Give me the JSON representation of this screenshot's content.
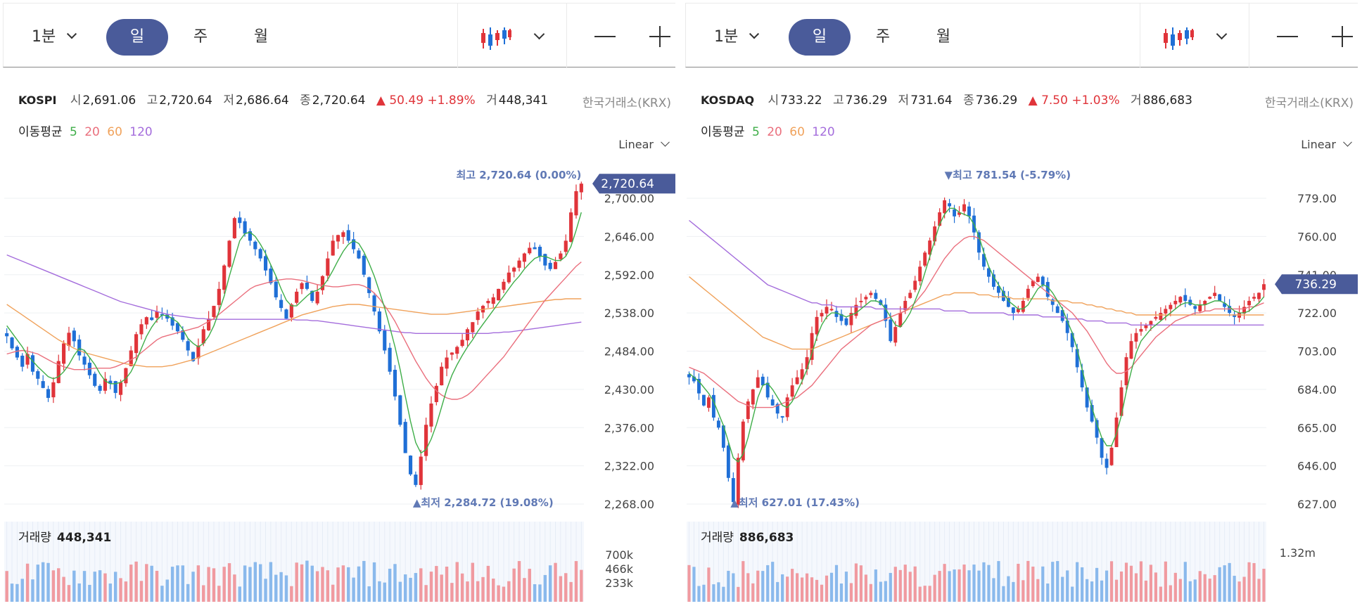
{
  "panels": [
    {
      "toolbar": {
        "interval": "1분",
        "day": "일",
        "week": "주",
        "month": "월"
      },
      "symbol": "KOSPI",
      "quote": {
        "open_label": "시",
        "open": "2,691.06",
        "high_label": "고",
        "high": "2,720.64",
        "low_label": "저",
        "low": "2,686.64",
        "close_label": "종",
        "close": "2,720.64",
        "change": "▲ 50.49 +1.89%",
        "volume_label": "거",
        "volume": "448,341"
      },
      "exchange": "한국거래소(KRX)",
      "ma": {
        "label": "이동평균",
        "p5": "5",
        "p20": "20",
        "p60": "60",
        "p120": "120"
      },
      "scale": "Linear",
      "price_badge": "2,720.64",
      "max_label": "최고 2,720.64 (0.00%)",
      "min_label": "▲최저 2,284.72 (19.08%)",
      "volume_title": "거래량",
      "volume_value": "448,341"
    },
    {
      "toolbar": {
        "interval": "1분",
        "day": "일",
        "week": "주",
        "month": "월"
      },
      "symbol": "KOSDAQ",
      "quote": {
        "open_label": "시",
        "open": "733.22",
        "high_label": "고",
        "high": "736.29",
        "low_label": "저",
        "low": "731.64",
        "close_label": "종",
        "close": "736.29",
        "change": "▲ 7.50 +1.03%",
        "volume_label": "거",
        "volume": "886,683"
      },
      "exchange": "한국거래소(KRX)",
      "ma": {
        "label": "이동평균",
        "p5": "5",
        "p20": "20",
        "p60": "60",
        "p120": "120"
      },
      "scale": "Linear",
      "price_badge": "736.29",
      "max_label": "▼최고 781.54 (-5.79%)",
      "min_label": "▲최저 627.01 (17.43%)",
      "volume_title": "거래량",
      "volume_value": "886,683"
    }
  ],
  "colors": {
    "up": "#e0343a",
    "down": "#1f6fd6",
    "ma5": "#3fae49",
    "ma20": "#ea6f7d",
    "ma60": "#f0a25b",
    "ma120": "#a46ddc",
    "badge": "#4a5b9a"
  },
  "chart_data": [
    {
      "type": "candlestick",
      "title": "KOSPI",
      "y_ticks": [
        "2,700.00",
        "2,646.00",
        "2,592.00",
        "2,538.00",
        "2,484.00",
        "2,430.00",
        "2,376.00",
        "2,322.00",
        "2,268.00"
      ],
      "ylim": [
        2268,
        2700
      ],
      "vol_ticks": [
        "700k",
        "466k",
        "233k"
      ],
      "vol_max": 700000,
      "close": [
        2505,
        2488,
        2475,
        2462,
        2480,
        2455,
        2445,
        2432,
        2418,
        2440,
        2470,
        2495,
        2510,
        2498,
        2478,
        2465,
        2450,
        2435,
        2428,
        2445,
        2438,
        2425,
        2440,
        2460,
        2485,
        2508,
        2522,
        2532,
        2528,
        2540,
        2535,
        2530,
        2520,
        2512,
        2500,
        2485,
        2470,
        2492,
        2515,
        2530,
        2548,
        2572,
        2605,
        2640,
        2672,
        2665,
        2650,
        2640,
        2628,
        2615,
        2598,
        2580,
        2560,
        2545,
        2530,
        2550,
        2568,
        2580,
        2572,
        2555,
        2568,
        2590,
        2615,
        2640,
        2648,
        2652,
        2640,
        2628,
        2615,
        2592,
        2566,
        2540,
        2512,
        2485,
        2455,
        2420,
        2380,
        2340,
        2310,
        2295,
        2335,
        2380,
        2410,
        2435,
        2462,
        2475,
        2482,
        2490,
        2500,
        2515,
        2525,
        2540,
        2548,
        2555,
        2560,
        2572,
        2582,
        2595,
        2602,
        2612,
        2622,
        2630,
        2628,
        2618,
        2605,
        2600,
        2610,
        2622,
        2640,
        2680,
        2710,
        2720.64
      ],
      "ma5": [
        2520,
        2510,
        2500,
        2490,
        2478,
        2470,
        2462,
        2455,
        2448,
        2445,
        2448,
        2455,
        2465,
        2478,
        2488,
        2485,
        2475,
        2465,
        2452,
        2442,
        2438,
        2438,
        2440,
        2445,
        2455,
        2470,
        2488,
        2505,
        2518,
        2528,
        2535,
        2534,
        2530,
        2525,
        2515,
        2502,
        2495,
        2490,
        2495,
        2505,
        2520,
        2540,
        2562,
        2590,
        2615,
        2640,
        2650,
        2652,
        2646,
        2635,
        2622,
        2606,
        2590,
        2572,
        2556,
        2548,
        2548,
        2555,
        2562,
        2568,
        2570,
        2575,
        2585,
        2598,
        2612,
        2625,
        2635,
        2640,
        2636,
        2624,
        2608,
        2590,
        2568,
        2545,
        2518,
        2490,
        2458,
        2420,
        2385,
        2355,
        2340,
        2345,
        2360,
        2380,
        2405,
        2430,
        2450,
        2465,
        2478,
        2490,
        2500,
        2512,
        2522,
        2532,
        2542,
        2552,
        2562,
        2572,
        2582,
        2590,
        2600,
        2608,
        2615,
        2618,
        2618,
        2615,
        2612,
        2612,
        2618,
        2632,
        2655,
        2680
      ],
      "ma20": [
        2480,
        2482,
        2484,
        2485,
        2484,
        2482,
        2480,
        2476,
        2472,
        2468,
        2465,
        2462,
        2460,
        2458,
        2458,
        2458,
        2459,
        2460,
        2460,
        2460,
        2460,
        2462,
        2465,
        2468,
        2472,
        2476,
        2482,
        2488,
        2494,
        2500,
        2504,
        2506,
        2508,
        2510,
        2512,
        2514,
        2516,
        2518,
        2522,
        2526,
        2530,
        2536,
        2542,
        2548,
        2554,
        2560,
        2566,
        2572,
        2576,
        2578,
        2580,
        2582,
        2584,
        2585,
        2586,
        2586,
        2585,
        2584,
        2582,
        2580,
        2578,
        2577,
        2576,
        2575,
        2575,
        2576,
        2577,
        2578,
        2578,
        2576,
        2572,
        2566,
        2558,
        2548,
        2538,
        2526,
        2512,
        2498,
        2484,
        2470,
        2458,
        2446,
        2436,
        2428,
        2422,
        2418,
        2416,
        2416,
        2418,
        2422,
        2428,
        2436,
        2444,
        2452,
        2460,
        2468,
        2476,
        2486,
        2496,
        2506,
        2516,
        2526,
        2536,
        2546,
        2556,
        2564,
        2572,
        2580,
        2588,
        2596,
        2604,
        2610
      ],
      "ma60": [
        2550,
        2545,
        2540,
        2535,
        2530,
        2525,
        2520,
        2515,
        2510,
        2505,
        2500,
        2496,
        2492,
        2488,
        2485,
        2482,
        2480,
        2478,
        2476,
        2474,
        2472,
        2470,
        2468,
        2466,
        2465,
        2464,
        2463,
        2462,
        2462,
        2462,
        2462,
        2463,
        2464,
        2466,
        2468,
        2470,
        2472,
        2475,
        2478,
        2481,
        2484,
        2487,
        2490,
        2493,
        2496,
        2499,
        2502,
        2505,
        2508,
        2511,
        2514,
        2517,
        2520,
        2523,
        2526,
        2529,
        2532,
        2535,
        2537,
        2539,
        2541,
        2543,
        2545,
        2547,
        2548,
        2549,
        2550,
        2550,
        2550,
        2549,
        2548,
        2547,
        2546,
        2545,
        2544,
        2543,
        2542,
        2541,
        2540,
        2539,
        2538,
        2537,
        2536,
        2536,
        2536,
        2536,
        2537,
        2538,
        2539,
        2540,
        2541,
        2542,
        2543,
        2544,
        2545,
        2546,
        2547,
        2548,
        2549,
        2550,
        2551,
        2552,
        2553,
        2554,
        2555,
        2556,
        2557,
        2557,
        2558,
        2558,
        2558,
        2558
      ],
      "ma120": [
        2620,
        2617,
        2614,
        2611,
        2608,
        2605,
        2602,
        2599,
        2596,
        2593,
        2590,
        2587,
        2584,
        2581,
        2578,
        2575,
        2572,
        2569,
        2566,
        2563,
        2560,
        2557,
        2554,
        2552,
        2550,
        2548,
        2546,
        2544,
        2542,
        2540,
        2538,
        2536,
        2535,
        2534,
        2533,
        2532,
        2531,
        2530,
        2530,
        2529,
        2529,
        2529,
        2529,
        2529,
        2529,
        2529,
        2529,
        2529,
        2529,
        2529,
        2529,
        2529,
        2529,
        2529,
        2529,
        2529,
        2528,
        2528,
        2528,
        2527,
        2527,
        2526,
        2525,
        2524,
        2523,
        2522,
        2521,
        2520,
        2519,
        2518,
        2517,
        2516,
        2515,
        2514,
        2513,
        2512,
        2511,
        2510,
        2510,
        2509,
        2509,
        2509,
        2509,
        2509,
        2509,
        2509,
        2509,
        2509,
        2509,
        2509,
        2509,
        2509,
        2509,
        2509,
        2510,
        2510,
        2511,
        2511,
        2512,
        2513,
        2514,
        2515,
        2516,
        2517,
        2518,
        2519,
        2520,
        2521,
        2522,
        2523,
        2524,
        2525
      ]
    },
    {
      "type": "candlestick",
      "title": "KOSDAQ",
      "y_ticks": [
        "779.00",
        "760.00",
        "741.00",
        "722.00",
        "703.00",
        "684.00",
        "665.00",
        "646.00",
        "627.00"
      ],
      "ylim": [
        627,
        779
      ],
      "vol_ticks": [
        "1.32m"
      ],
      "vol_max": 1320000,
      "close": [
        690,
        688,
        682,
        676,
        680,
        670,
        665,
        655,
        640,
        628,
        650,
        668,
        678,
        684,
        690,
        686,
        680,
        676,
        672,
        670,
        680,
        686,
        690,
        694,
        700,
        712,
        720,
        722,
        725,
        724,
        720,
        718,
        716,
        722,
        726,
        728,
        730,
        732,
        729,
        726,
        718,
        708,
        715,
        722,
        728,
        732,
        738,
        745,
        752,
        758,
        765,
        772,
        778,
        775,
        770,
        772,
        776,
        770,
        762,
        752,
        745,
        740,
        735,
        732,
        728,
        725,
        722,
        724,
        728,
        734,
        738,
        740,
        736,
        730,
        726,
        722,
        718,
        712,
        705,
        695,
        685,
        675,
        668,
        660,
        650,
        645,
        655,
        670,
        685,
        700,
        708,
        712,
        714,
        716,
        718,
        720,
        722,
        724,
        726,
        728,
        730,
        728,
        726,
        724,
        726,
        728,
        730,
        732,
        728,
        725,
        722,
        720,
        722,
        725,
        728,
        730,
        732,
        736.29
      ],
      "ma5": [
        692,
        690,
        688,
        685,
        682,
        678,
        672,
        666,
        658,
        650,
        648,
        652,
        660,
        670,
        680,
        686,
        687,
        684,
        680,
        676,
        675,
        678,
        683,
        688,
        694,
        702,
        710,
        716,
        720,
        722,
        722,
        721,
        720,
        721,
        722,
        724,
        726,
        728,
        728,
        727,
        724,
        720,
        716,
        715,
        718,
        722,
        728,
        734,
        742,
        750,
        758,
        766,
        771,
        774,
        774,
        772,
        771,
        770,
        766,
        760,
        752,
        745,
        740,
        736,
        732,
        728,
        726,
        724,
        724,
        726,
        730,
        734,
        736,
        735,
        732,
        728,
        724,
        718,
        712,
        704,
        694,
        684,
        675,
        667,
        660,
        656,
        656,
        662,
        671,
        683,
        693,
        702,
        708,
        711,
        714,
        716,
        718,
        720,
        722,
        724,
        726,
        727,
        727,
        726,
        726,
        726,
        727,
        728,
        728,
        727,
        725,
        723,
        722,
        722,
        723,
        725,
        727,
        730
      ],
      "ma20": [
        695,
        694,
        693,
        692,
        690,
        688,
        686,
        684,
        682,
        680,
        678,
        677,
        676,
        675,
        675,
        675,
        675,
        675,
        676,
        677,
        678,
        679,
        680,
        682,
        684,
        686,
        689,
        692,
        695,
        698,
        701,
        704,
        706,
        708,
        710,
        712,
        714,
        716,
        717,
        718,
        719,
        720,
        721,
        722,
        723,
        725,
        727,
        730,
        733,
        737,
        741,
        745,
        749,
        752,
        755,
        757,
        759,
        760,
        760,
        759,
        758,
        756,
        754,
        752,
        750,
        748,
        746,
        744,
        742,
        740,
        738,
        736,
        734,
        732,
        730,
        728,
        726,
        724,
        722,
        719,
        716,
        713,
        709,
        705,
        701,
        697,
        694,
        692,
        692,
        693,
        695,
        698,
        701,
        704,
        707,
        710,
        712,
        714,
        716,
        718,
        719,
        720,
        721,
        722,
        722,
        723,
        723,
        724,
        724,
        724,
        724,
        724,
        724,
        724,
        725,
        725,
        726,
        727
      ],
      "ma60": [
        740,
        738,
        736,
        734,
        732,
        730,
        728,
        726,
        724,
        722,
        720,
        718,
        716,
        714,
        712,
        710,
        709,
        708,
        707,
        706,
        705,
        704,
        704,
        704,
        704,
        704,
        705,
        706,
        707,
        708,
        709,
        710,
        711,
        712,
        713,
        714,
        715,
        716,
        717,
        718,
        719,
        720,
        721,
        722,
        723,
        724,
        725,
        726,
        727,
        728,
        729,
        730,
        731,
        731,
        732,
        732,
        732,
        732,
        732,
        731,
        731,
        731,
        730,
        730,
        730,
        730,
        729,
        729,
        729,
        729,
        729,
        729,
        729,
        729,
        728,
        728,
        728,
        728,
        727,
        727,
        727,
        726,
        726,
        725,
        725,
        724,
        724,
        723,
        723,
        722,
        722,
        721,
        721,
        721,
        721,
        721,
        721,
        721,
        721,
        721,
        721,
        721,
        721,
        721,
        721,
        721,
        721,
        721,
        721,
        721,
        721,
        721,
        721,
        721,
        721,
        721,
        721,
        721
      ],
      "ma120": [
        768,
        766,
        764,
        762,
        760,
        758,
        756,
        754,
        752,
        750,
        748,
        746,
        744,
        742,
        740,
        738,
        736,
        735,
        734,
        733,
        732,
        731,
        730,
        729,
        728,
        727,
        727,
        726,
        726,
        726,
        725,
        725,
        725,
        725,
        725,
        725,
        725,
        725,
        724,
        724,
        724,
        724,
        724,
        724,
        724,
        724,
        724,
        724,
        724,
        724,
        724,
        724,
        723,
        723,
        723,
        723,
        723,
        722,
        722,
        722,
        722,
        722,
        722,
        722,
        722,
        721,
        721,
        721,
        721,
        721,
        721,
        721,
        720,
        720,
        720,
        720,
        720,
        719,
        719,
        719,
        719,
        718,
        718,
        718,
        718,
        717,
        717,
        717,
        717,
        717,
        716,
        716,
        716,
        716,
        716,
        716,
        716,
        716,
        716,
        716,
        716,
        716,
        716,
        716,
        716,
        716,
        716,
        716,
        716,
        716,
        716,
        716,
        716,
        716,
        716,
        716,
        716,
        716
      ]
    }
  ]
}
